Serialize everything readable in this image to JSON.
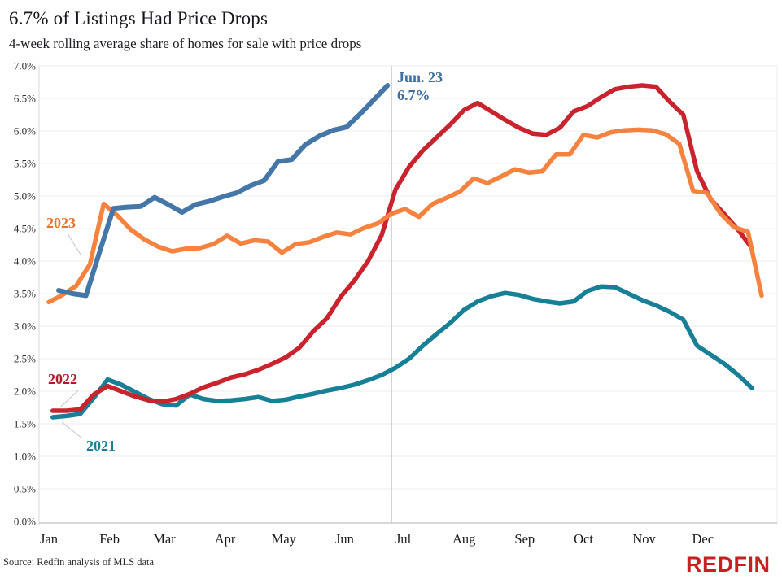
{
  "header": {
    "title": "6.7% of Listings Had Price Drops",
    "subtitle": "4-week rolling average share of homes for sale with price drops"
  },
  "annotation": {
    "line1": "Jun. 23",
    "line2": "6.7%",
    "color": "#3E6FA3"
  },
  "footer": {
    "source": "Source: Redfin analysis of MLS data",
    "logo_text": "REDFIN",
    "logo_color": "#C82021"
  },
  "chart_data": {
    "type": "line",
    "title": "6.7% of Listings Had Price Drops",
    "subtitle": "4-week rolling average share of homes for sale with price drops",
    "ylabel": "share of homes for sale with price drops",
    "ylim": [
      0,
      7
    ],
    "ytick_step_pct": 0.5,
    "ytick_labels": [
      "0.0%",
      "0.5%",
      "1.0%",
      "1.5%",
      "2.0%",
      "2.5%",
      "3.0%",
      "3.5%",
      "4.0%",
      "4.5%",
      "5.0%",
      "5.5%",
      "6.0%",
      "6.5%",
      "7.0%"
    ],
    "xtick_labels": [
      "Jan",
      "Feb",
      "Mar",
      "Apr",
      "May",
      "Jun",
      "Jul",
      "Aug",
      "Sep",
      "Oct",
      "Nov",
      "Dec"
    ],
    "month_start_days": [
      0,
      31,
      59,
      90,
      120,
      151,
      181,
      212,
      243,
      273,
      304,
      334
    ],
    "grid": true,
    "legend_position": "inline-labels",
    "current_date_line_day": 175,
    "latest_point": {
      "date": "Jun. 23",
      "value_pct": 6.7
    },
    "series": [
      {
        "name": "current-year",
        "label": "",
        "color": "#4576A8",
        "start_day": 5,
        "step_days": 7,
        "values": [
          3.55,
          3.5,
          3.47,
          4.15,
          4.81,
          4.83,
          4.84,
          4.98,
          4.87,
          4.75,
          4.87,
          4.92,
          4.99,
          5.05,
          5.16,
          5.24,
          5.53,
          5.56,
          5.79,
          5.92,
          6.01,
          6.06,
          6.26,
          6.48,
          6.7
        ]
      },
      {
        "name": "2023",
        "label": "2023",
        "color": "#F5833F",
        "label_color": "#E8732A",
        "start_day": 0,
        "step_days": 7,
        "values": [
          3.37,
          3.48,
          3.62,
          3.95,
          4.88,
          4.7,
          4.48,
          4.33,
          4.22,
          4.15,
          4.19,
          4.2,
          4.26,
          4.39,
          4.27,
          4.32,
          4.3,
          4.13,
          4.26,
          4.29,
          4.37,
          4.44,
          4.41,
          4.51,
          4.58,
          4.73,
          4.8,
          4.68,
          4.88,
          4.97,
          5.07,
          5.27,
          5.2,
          5.3,
          5.41,
          5.36,
          5.38,
          5.64,
          5.64,
          5.94,
          5.9,
          5.98,
          6.01,
          6.02,
          6.01,
          5.95,
          5.8,
          5.08,
          5.05,
          4.73,
          4.52,
          4.45,
          3.47
        ]
      },
      {
        "name": "2022",
        "label": "2022",
        "color": "#C9232E",
        "label_color": "#A91E2C",
        "start_day": 2,
        "step_days": 7,
        "values": [
          1.7,
          1.7,
          1.72,
          1.95,
          2.08,
          2.0,
          1.92,
          1.86,
          1.84,
          1.88,
          1.96,
          2.06,
          2.13,
          2.21,
          2.26,
          2.33,
          2.42,
          2.52,
          2.67,
          2.92,
          3.12,
          3.45,
          3.7,
          4.0,
          4.4,
          5.1,
          5.45,
          5.7,
          5.9,
          6.1,
          6.32,
          6.43,
          6.3,
          6.17,
          6.05,
          5.96,
          5.94,
          6.05,
          6.3,
          6.38,
          6.52,
          6.64,
          6.68,
          6.7,
          6.68,
          6.45,
          6.25,
          5.38,
          4.95,
          4.72,
          4.48,
          4.2
        ]
      },
      {
        "name": "2021",
        "label": "2021",
        "color": "#177F96",
        "label_color": "#177F96",
        "start_day": 2,
        "step_days": 7,
        "values": [
          1.6,
          1.62,
          1.65,
          1.9,
          2.18,
          2.1,
          1.99,
          1.88,
          1.8,
          1.78,
          1.95,
          1.88,
          1.85,
          1.86,
          1.88,
          1.91,
          1.85,
          1.87,
          1.92,
          1.96,
          2.01,
          2.05,
          2.1,
          2.17,
          2.25,
          2.36,
          2.5,
          2.7,
          2.88,
          3.05,
          3.25,
          3.38,
          3.46,
          3.51,
          3.48,
          3.42,
          3.38,
          3.35,
          3.38,
          3.54,
          3.61,
          3.6,
          3.5,
          3.4,
          3.32,
          3.22,
          3.1,
          2.7,
          2.56,
          2.42,
          2.25,
          2.05
        ]
      }
    ]
  }
}
